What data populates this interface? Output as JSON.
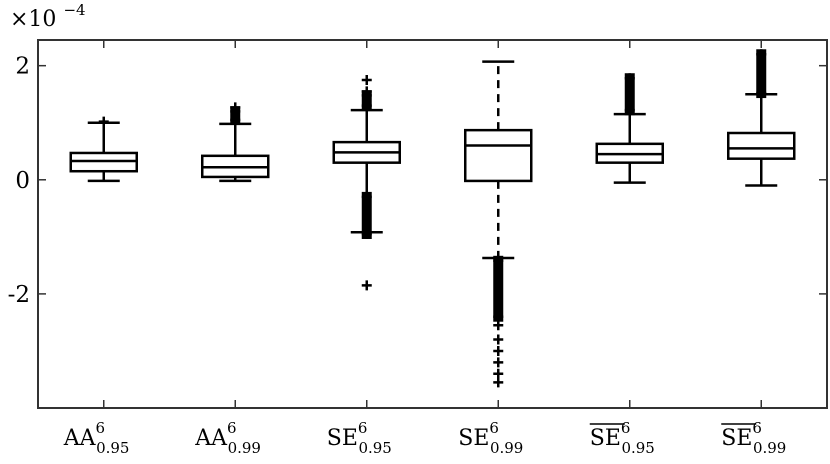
{
  "chart_data": {
    "type": "box",
    "title": "",
    "xlabel": "",
    "ylabel": "",
    "y_multiplier": {
      "base": "×10",
      "exponent": "−4"
    },
    "ylim": [
      -4.0,
      2.45
    ],
    "yticks": [
      {
        "value": 2,
        "label": "2"
      },
      {
        "value": 0,
        "label": "0"
      },
      {
        "value": -2,
        "label": "-2"
      }
    ],
    "grid": false,
    "categories": [
      {
        "main": "AA",
        "sup": "6",
        "sub": "0.95",
        "overline": false
      },
      {
        "main": "AA",
        "sup": "6",
        "sub": "0.99",
        "overline": false
      },
      {
        "main": "SE",
        "sup": "6",
        "sub": "0.95",
        "overline": false
      },
      {
        "main": "SE",
        "sup": "6",
        "sub": "0.99",
        "overline": false
      },
      {
        "main": "SE",
        "sup": "6",
        "sub": "0.95",
        "overline": true
      },
      {
        "main": "SE",
        "sup": "6",
        "sub": "0.99",
        "overline": true
      }
    ],
    "boxes": [
      {
        "whisker_low": -0.02,
        "q1": 0.15,
        "median": 0.33,
        "q3": 0.47,
        "whisker_high": 1.0,
        "outlier_ranges": [],
        "outliers": [
          1.02
        ]
      },
      {
        "whisker_low": -0.02,
        "q1": 0.05,
        "median": 0.22,
        "q3": 0.42,
        "whisker_high": 0.98,
        "outlier_ranges": [
          [
            1.05,
            1.2
          ]
        ],
        "outliers": [
          1.27
        ]
      },
      {
        "whisker_low": -0.92,
        "q1": 0.3,
        "median": 0.48,
        "q3": 0.66,
        "whisker_high": 1.22,
        "outlier_ranges": [
          [
            1.3,
            1.48
          ],
          [
            -0.95,
            -0.3
          ]
        ],
        "outliers": [
          1.55,
          1.75,
          -1.85
        ]
      },
      {
        "whisker_low": -1.37,
        "q1": -0.02,
        "median": 0.6,
        "q3": 0.87,
        "whisker_high": 2.07,
        "dashed_whiskers": true,
        "outlier_ranges": [
          [
            -2.4,
            -1.42
          ]
        ],
        "outliers": [
          -2.55,
          -2.8,
          -3.0,
          -3.2,
          -3.4,
          -3.55
        ]
      },
      {
        "whisker_low": -0.05,
        "q1": 0.3,
        "median": 0.45,
        "q3": 0.63,
        "whisker_high": 1.15,
        "outlier_ranges": [
          [
            1.22,
            1.78
          ]
        ],
        "outliers": []
      },
      {
        "whisker_low": -0.1,
        "q1": 0.37,
        "median": 0.55,
        "q3": 0.82,
        "whisker_high": 1.5,
        "outlier_ranges": [
          [
            1.52,
            2.2
          ]
        ],
        "outliers": []
      }
    ]
  }
}
